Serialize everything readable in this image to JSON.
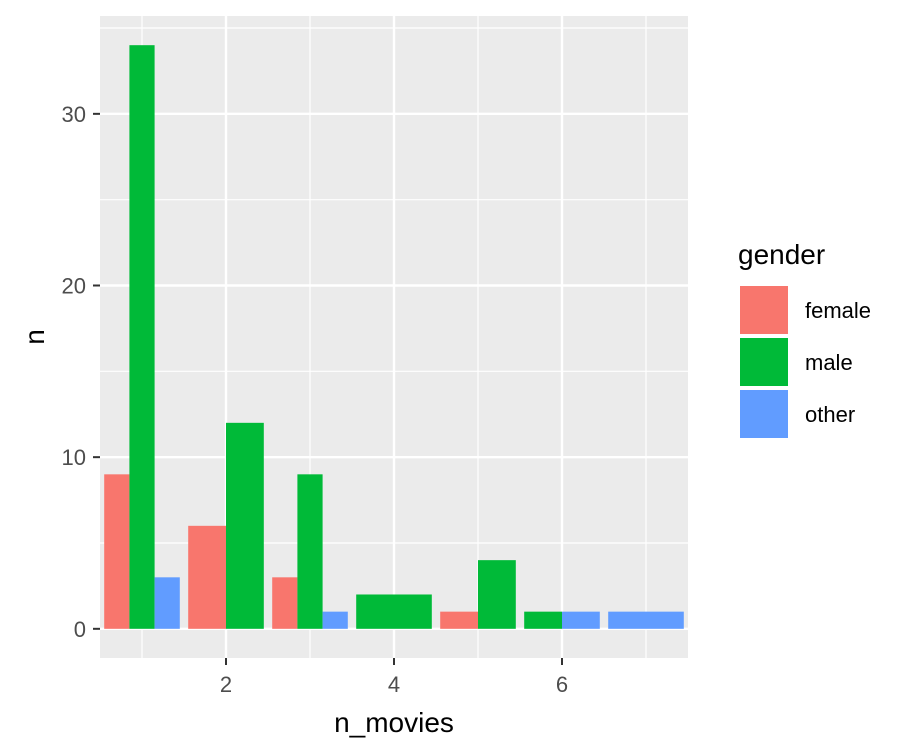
{
  "chart_data": {
    "type": "bar",
    "xlabel": "n_movies",
    "ylabel": "n",
    "xlim": [
      0.5,
      7.5
    ],
    "ylim": [
      -1.7,
      35.7
    ],
    "x_ticks": [
      2,
      4,
      6
    ],
    "y_ticks": [
      0,
      10,
      20,
      30
    ],
    "grid": true,
    "legend": {
      "title": "gender",
      "placement": "right"
    },
    "series": [
      {
        "name": "female",
        "color": "#F8766D",
        "points": [
          {
            "x": 1,
            "y": 9
          },
          {
            "x": 2,
            "y": 6
          },
          {
            "x": 3,
            "y": 3
          },
          {
            "x": 5,
            "y": 1
          }
        ]
      },
      {
        "name": "male",
        "color": "#00BA38",
        "points": [
          {
            "x": 1,
            "y": 34
          },
          {
            "x": 2,
            "y": 12
          },
          {
            "x": 3,
            "y": 9
          },
          {
            "x": 4,
            "y": 2
          },
          {
            "x": 5,
            "y": 4
          },
          {
            "x": 6,
            "y": 1
          }
        ]
      },
      {
        "name": "other",
        "color": "#619CFF",
        "points": [
          {
            "x": 1,
            "y": 3
          },
          {
            "x": 3,
            "y": 1
          },
          {
            "x": 6,
            "y": 1
          },
          {
            "x": 7,
            "y": 1
          }
        ]
      }
    ]
  }
}
